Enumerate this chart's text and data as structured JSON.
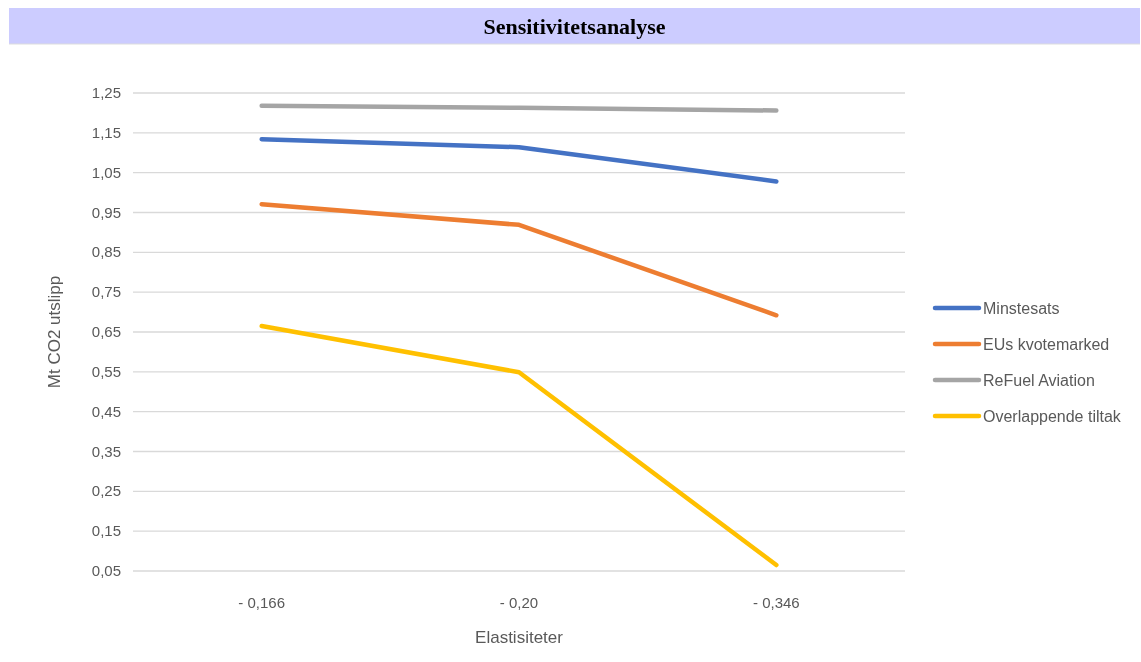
{
  "chart_data": {
    "type": "line",
    "title": "Sensitivitetsanalyse",
    "xlabel": "Elastisiteter",
    "ylabel": "Mt CO2 utslipp",
    "categories": [
      "- 0,166",
      "- 0,20",
      "- 0,346"
    ],
    "series": [
      {
        "name": "Minstesats",
        "color": "#4472c4",
        "values": [
          1.134,
          1.114,
          1.028
        ]
      },
      {
        "name": "EUs kvotemarked",
        "color": "#ed7d31",
        "values": [
          0.971,
          0.919,
          0.692
        ]
      },
      {
        "name": "ReFuel Aviation",
        "color": "#a5a5a5",
        "values": [
          1.218,
          1.213,
          1.206
        ]
      },
      {
        "name": "Overlappende tiltak",
        "color": "#ffc000",
        "values": [
          0.665,
          0.549,
          0.065
        ]
      }
    ],
    "ylim": [
      0.05,
      1.25
    ],
    "yticks": [
      {
        "value": 0.05,
        "label": "0,05"
      },
      {
        "value": 0.15,
        "label": "0,15"
      },
      {
        "value": 0.25,
        "label": "0,25"
      },
      {
        "value": 0.35,
        "label": "0,35"
      },
      {
        "value": 0.45,
        "label": "0,45"
      },
      {
        "value": 0.55,
        "label": "0,55"
      },
      {
        "value": 0.65,
        "label": "0,65"
      },
      {
        "value": 0.75,
        "label": "0,75"
      },
      {
        "value": 0.85,
        "label": "0,85"
      },
      {
        "value": 0.95,
        "label": "0,95"
      },
      {
        "value": 1.05,
        "label": "1,05"
      },
      {
        "value": 1.15,
        "label": "1,15"
      },
      {
        "value": 1.25,
        "label": "1,25"
      }
    ],
    "grid": "y",
    "legend": "right",
    "marker": "none",
    "line_style": "solid"
  }
}
